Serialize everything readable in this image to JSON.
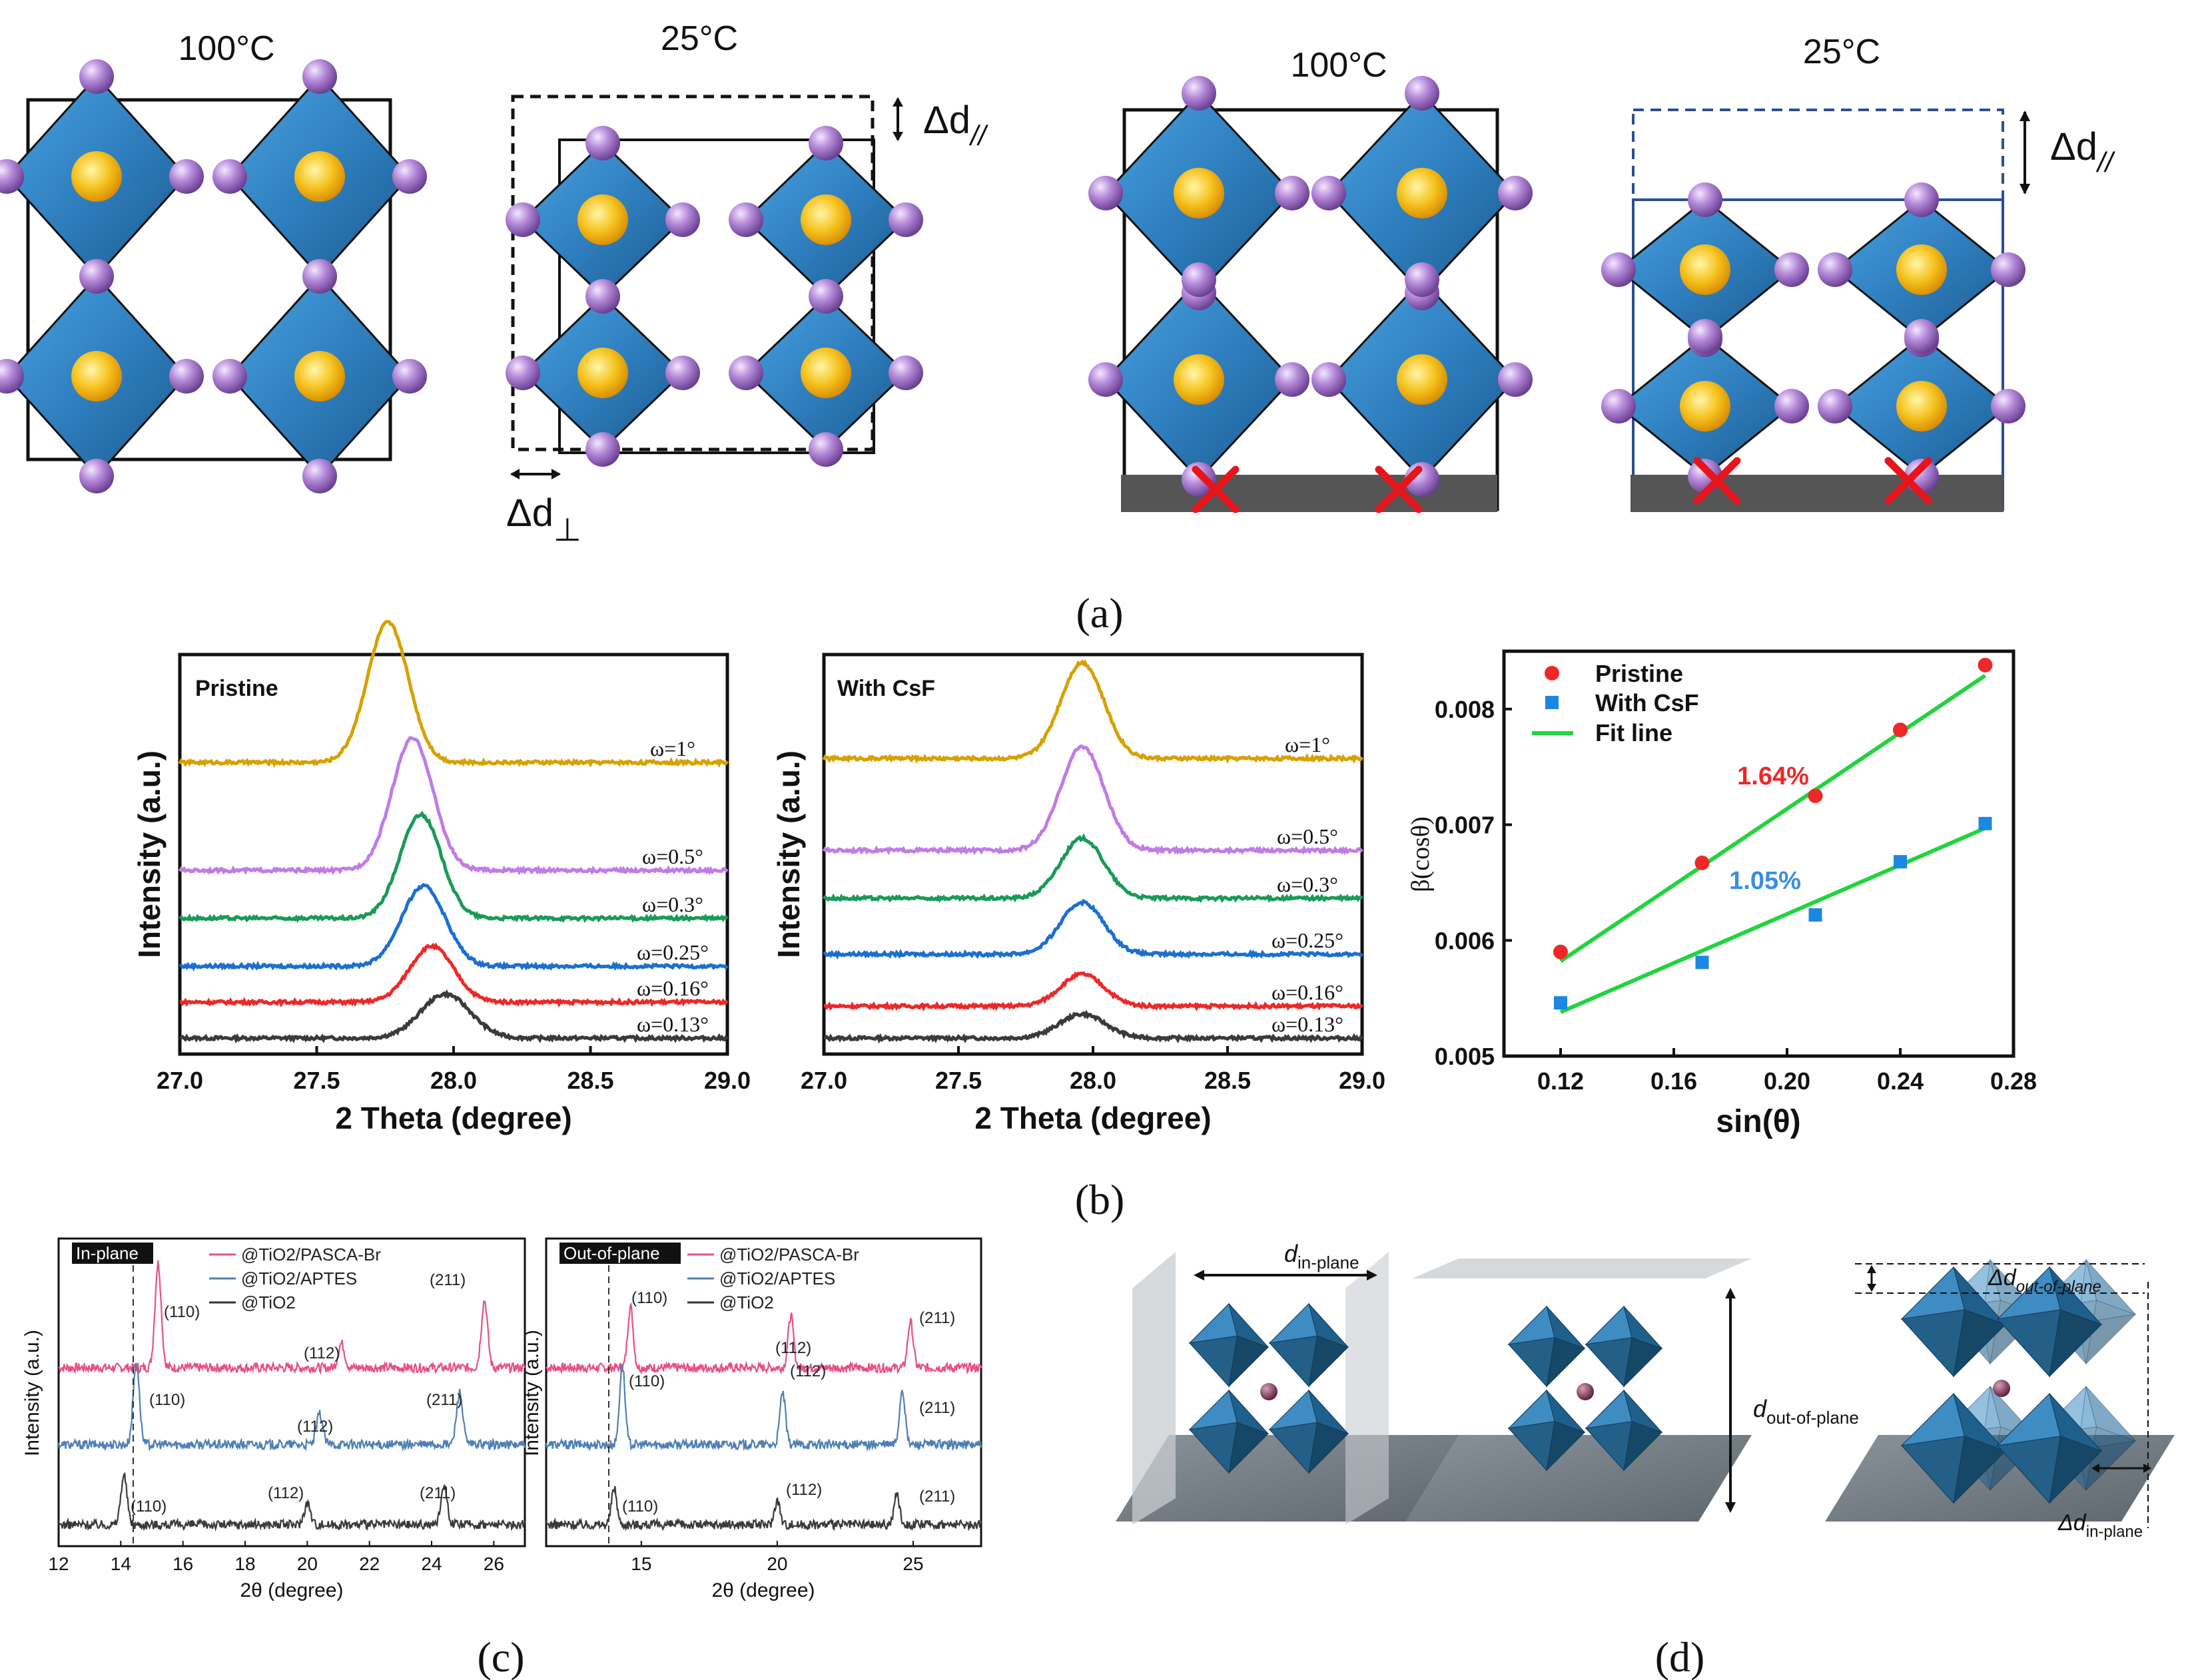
{
  "figure": {
    "panel_labels": {
      "a": "(a)",
      "b": "(b)",
      "c": "(c)",
      "d": "(d)"
    }
  },
  "panel_a": {
    "temps": [
      "100°C",
      "25°C",
      "100°C",
      "25°C"
    ],
    "delta_parallel_main": "Δd",
    "delta_parallel_sub": "//",
    "delta_perp_main": "Δd",
    "delta_perp_sub": "⊥"
  },
  "colors": {
    "octahedron": "#2f7fbf",
    "octahedron_dark": "#1d5f95",
    "anion": "#a070c8",
    "cation": "#f2b020",
    "substrate": "#555555",
    "cross": "#e8141c",
    "orange": "#d8a000",
    "violet": "#c07ce6",
    "green": "#1a9a58",
    "blue": "#1c6fd0",
    "red": "#ee2828",
    "dark": "#3a3a3a",
    "fit": "#22d43e",
    "pink": "#e94f84",
    "steel": "#4f7fb4"
  },
  "panel_b": {
    "xrd_left": {
      "label": "Pristine",
      "xlabel": "2 Theta (degree)",
      "ylabel": "Intensity (a.u.)",
      "xticks": [
        "27.0",
        "27.5",
        "28.0",
        "28.5",
        "29.0"
      ]
    },
    "xrd_mid": {
      "label": "With CsF",
      "xlabel": "2 Theta (degree)",
      "ylabel": "Intensity (a.u.)",
      "xticks": [
        "27.0",
        "27.5",
        "28.0",
        "28.5",
        "29.0"
      ]
    },
    "strain": {
      "xlabel": "sin(θ)",
      "ylabel": "β(cosθ)",
      "legend": [
        "Pristine",
        "With CsF",
        "Fit line"
      ],
      "annot_pristine": "1.64%",
      "annot_csf": "1.05%",
      "xticks": [
        "0.12",
        "0.16",
        "0.20",
        "0.24",
        "0.28"
      ],
      "yticks": [
        "0.005",
        "0.006",
        "0.007",
        "0.008"
      ]
    }
  },
  "panel_c": {
    "left": {
      "tag": "In-plane",
      "xlabel": "2θ (degree)",
      "ylabel": "Intensity (a.u.)",
      "legend": [
        "@TiO2/PASCA-Br",
        "@TiO2/APTES",
        "@TiO2"
      ],
      "xticks": [
        "12",
        "14",
        "16",
        "18",
        "20",
        "22",
        "24",
        "26"
      ],
      "peaks": {
        "top": [
          "(110)",
          "(112)",
          "(211)"
        ],
        "mid": [
          "(110)",
          "(112)",
          "(211)"
        ],
        "bot": [
          "(110)",
          "(112)",
          "(211)"
        ]
      }
    },
    "right": {
      "tag": "Out-of-plane",
      "xlabel": "2θ (degree)",
      "ylabel": "Intensity (a.u.)",
      "legend": [
        "@TiO2/PASCA-Br",
        "@TiO2/APTES",
        "@TiO2"
      ],
      "xticks": [
        "15",
        "20",
        "25"
      ],
      "peaks": {
        "top": [
          "(110)",
          "(112)",
          "(211)"
        ],
        "mid": [
          "(110)",
          "(112)",
          "(211)"
        ],
        "bot": [
          "(110)",
          "(112)",
          "(211)"
        ]
      }
    }
  },
  "panel_d": {
    "d_in_main": "d",
    "d_in_sub": "in-plane",
    "d_out_main": "d",
    "d_out_sub": "out-of-plane",
    "dd_out_main": "Δd",
    "dd_out_sub": "out-of-plane",
    "dd_in_main": "Δd",
    "dd_in_sub": "in-plane"
  },
  "chart_data": [
    {
      "type": "line",
      "title": "Pristine",
      "xlabel": "2 Theta (degree)",
      "ylabel": "Intensity (a.u.)",
      "xlim": [
        27.0,
        29.0
      ],
      "series": [
        {
          "name": "ω=0.13°",
          "baseline": 0.04,
          "peak_center": 27.97,
          "peak_height": 0.11,
          "peak_width": 0.09
        },
        {
          "name": "ω=0.16°",
          "baseline": 0.13,
          "peak_center": 27.92,
          "peak_height": 0.14,
          "peak_width": 0.08
        },
        {
          "name": "ω=0.25°",
          "baseline": 0.22,
          "peak_center": 27.89,
          "peak_height": 0.2,
          "peak_width": 0.08
        },
        {
          "name": "ω=0.3°",
          "baseline": 0.34,
          "peak_center": 27.88,
          "peak_height": 0.26,
          "peak_width": 0.075
        },
        {
          "name": "ω=0.5°",
          "baseline": 0.46,
          "peak_center": 27.85,
          "peak_height": 0.33,
          "peak_width": 0.075
        },
        {
          "name": "ω=1°",
          "baseline": 0.73,
          "peak_center": 27.76,
          "peak_height": 0.35,
          "peak_width": 0.075
        }
      ]
    },
    {
      "type": "line",
      "title": "With CsF",
      "xlabel": "2 Theta (degree)",
      "ylabel": "Intensity (a.u.)",
      "xlim": [
        27.0,
        29.0
      ],
      "series": [
        {
          "name": "ω=0.13°",
          "baseline": 0.04,
          "peak_center": 27.96,
          "peak_height": 0.06,
          "peak_width": 0.085
        },
        {
          "name": "ω=0.16°",
          "baseline": 0.12,
          "peak_center": 27.96,
          "peak_height": 0.08,
          "peak_width": 0.08
        },
        {
          "name": "ω=0.25°",
          "baseline": 0.25,
          "peak_center": 27.96,
          "peak_height": 0.13,
          "peak_width": 0.08
        },
        {
          "name": "ω=0.3°",
          "baseline": 0.39,
          "peak_center": 27.96,
          "peak_height": 0.15,
          "peak_width": 0.08
        },
        {
          "name": "ω=0.5°",
          "baseline": 0.51,
          "peak_center": 27.96,
          "peak_height": 0.26,
          "peak_width": 0.08
        },
        {
          "name": "ω=1°",
          "baseline": 0.74,
          "peak_center": 27.96,
          "peak_height": 0.24,
          "peak_width": 0.08
        }
      ]
    },
    {
      "type": "scatter",
      "xlabel": "sin(θ)",
      "ylabel": "β(cosθ)",
      "xlim": [
        0.1,
        0.28
      ],
      "ylim": [
        0.005,
        0.0085
      ],
      "series": [
        {
          "name": "Pristine",
          "x": [
            0.12,
            0.17,
            0.21,
            0.24,
            0.27
          ],
          "y": [
            0.0059,
            0.00667,
            0.00725,
            0.00782,
            0.00838
          ]
        },
        {
          "name": "With CsF",
          "x": [
            0.12,
            0.17,
            0.21,
            0.24,
            0.27
          ],
          "y": [
            0.00546,
            0.00581,
            0.00622,
            0.00668,
            0.00701
          ]
        },
        {
          "name": "Fit line",
          "segments": [
            {
              "x": [
                0.12,
                0.27
              ],
              "y": [
                0.00582,
                0.00829
              ]
            },
            {
              "x": [
                0.12,
                0.27
              ],
              "y": [
                0.00538,
                0.00697
              ]
            }
          ]
        }
      ],
      "annotations": [
        "1.64%",
        "1.05%"
      ]
    },
    {
      "type": "line",
      "title": "In-plane",
      "xlabel": "2θ (degree)",
      "ylabel": "Intensity (a.u.)",
      "xlim": [
        12,
        27
      ],
      "series": [
        {
          "name": "@TiO2/PASCA-Br",
          "baseline": 0.58,
          "peaks": [
            [
              15.2,
              0.34
            ],
            [
              21.1,
              0.08
            ],
            [
              25.7,
              0.22
            ]
          ]
        },
        {
          "name": "@TiO2/APTES",
          "baseline": 0.33,
          "peaks": [
            [
              14.5,
              0.27
            ],
            [
              20.4,
              0.1
            ],
            [
              24.9,
              0.17
            ]
          ]
        },
        {
          "name": "@TiO2",
          "baseline": 0.07,
          "peaks": [
            [
              14.1,
              0.16
            ],
            [
              20.0,
              0.07
            ],
            [
              24.4,
              0.13
            ]
          ]
        }
      ]
    },
    {
      "type": "line",
      "title": "Out-of-plane",
      "xlabel": "2θ (degree)",
      "ylabel": "Intensity (a.u.)",
      "xlim": [
        11.5,
        27.5
      ],
      "series": [
        {
          "name": "@TiO2/PASCA-Br",
          "baseline": 0.58,
          "peaks": [
            [
              14.6,
              0.2
            ],
            [
              20.5,
              0.17
            ],
            [
              24.9,
              0.15
            ]
          ]
        },
        {
          "name": "@TiO2/APTES",
          "baseline": 0.33,
          "peaks": [
            [
              14.3,
              0.26
            ],
            [
              20.2,
              0.17
            ],
            [
              24.6,
              0.18
            ]
          ]
        },
        {
          "name": "@TiO2",
          "baseline": 0.07,
          "peaks": [
            [
              14.0,
              0.12
            ],
            [
              20.0,
              0.08
            ],
            [
              24.4,
              0.1
            ]
          ]
        }
      ]
    }
  ]
}
